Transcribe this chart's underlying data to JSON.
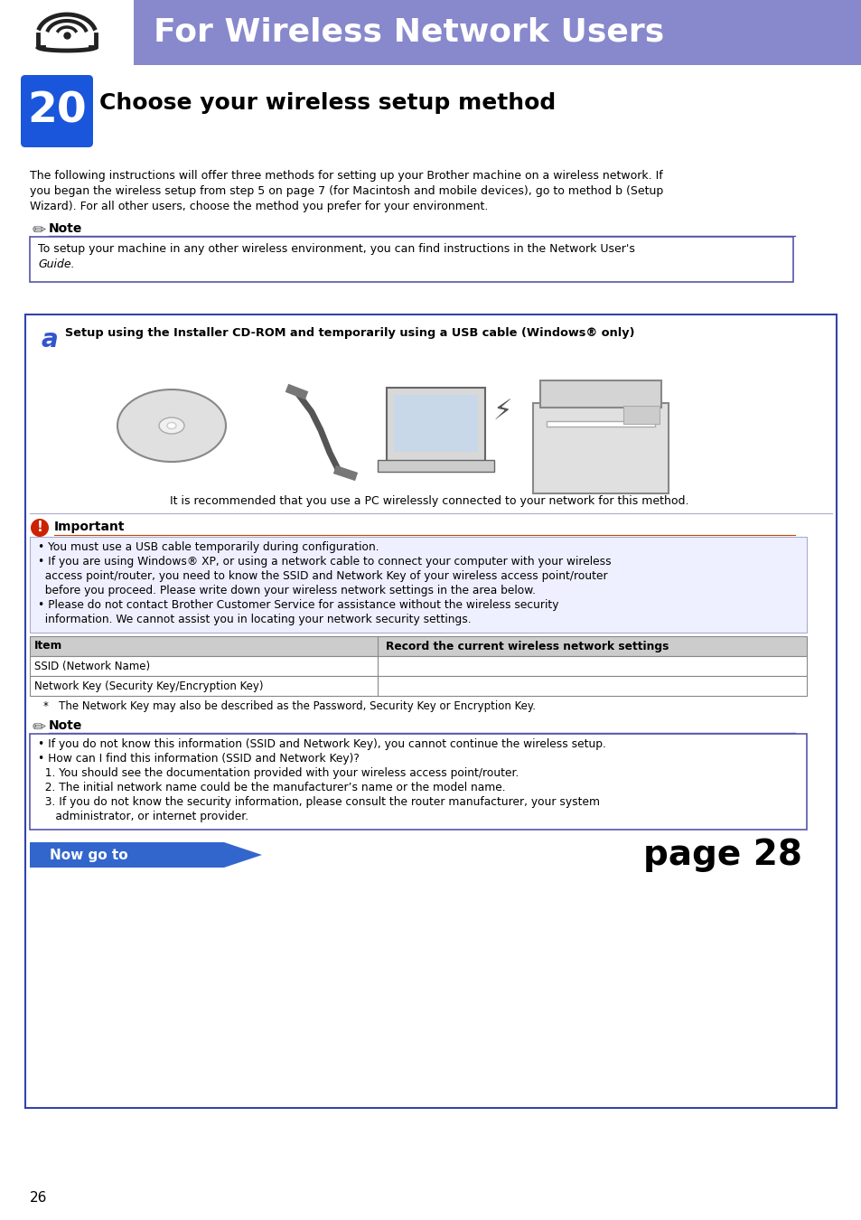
{
  "page_bg": "#ffffff",
  "header_bg": "#8888cc",
  "header_text": "For Wireless Network Users",
  "header_text_color": "#ffffff",
  "step_number": "20",
  "step_bg": "#1a56db",
  "step_title": "Choose your wireless setup method",
  "note_title": "Note",
  "note_border": "#5555aa",
  "box_a_border": "#3344aa",
  "box_a_label": "a",
  "box_a_title": "Setup using the Installer CD-ROM and temporarily using a USB cable (Windows® only)",
  "box_a_subtitle": "It is recommended that you use a PC wirelessly connected to your network for this method.",
  "important_title": "Important",
  "table_header1": "Item",
  "table_header2": "Record the current wireless network settings",
  "table_row1": "SSID (Network Name)",
  "table_row2": "Network Key (Security Key/Encryption Key)",
  "table_note": "*   The Network Key may also be described as the Password, Security Key or Encryption Key.",
  "now_go_to_bg": "#3366cc",
  "now_go_to_text": "Now go to",
  "page_ref": "page 28",
  "page_number": "26",
  "blue_color": "#3355cc"
}
